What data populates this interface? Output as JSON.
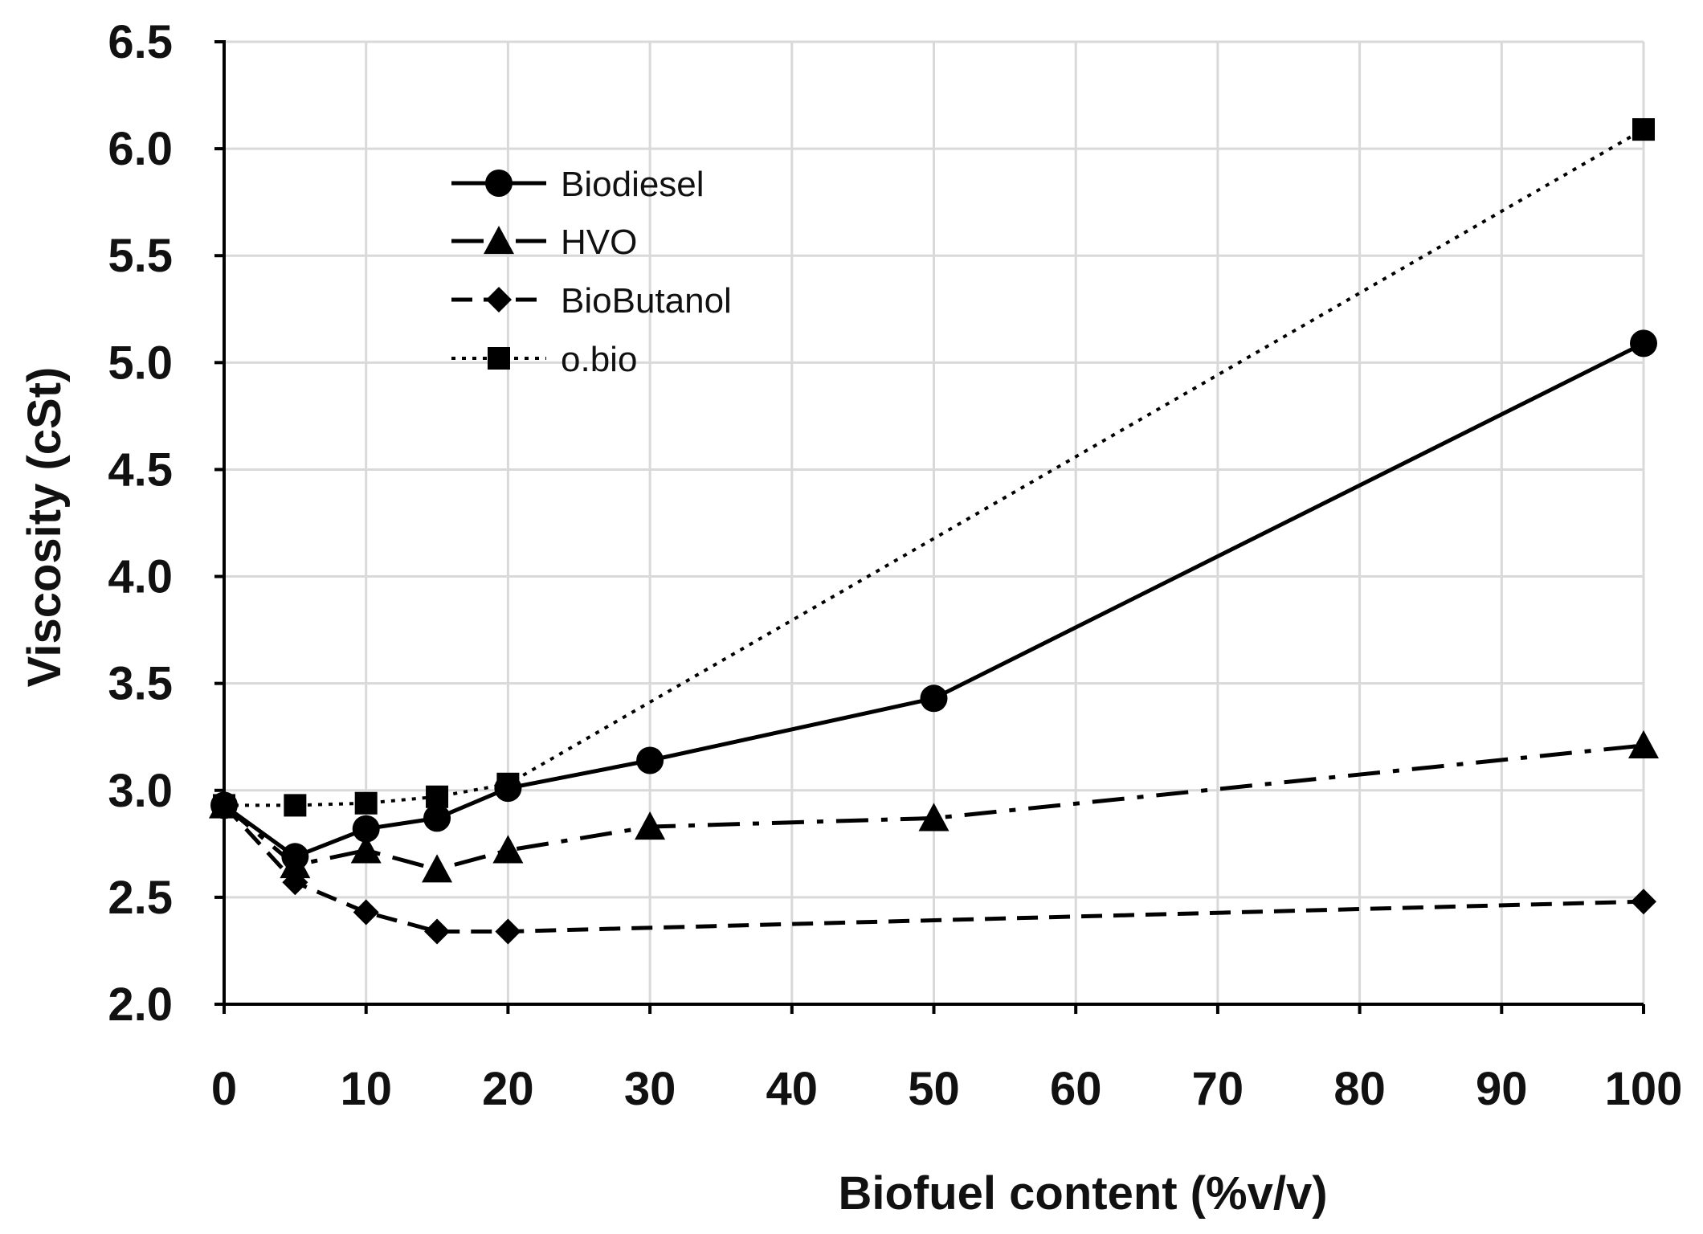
{
  "chart_data": {
    "type": "line",
    "title": "",
    "xlabel": "Biofuel content (%v/v)",
    "ylabel": "Viscosity  (cSt)",
    "xlim": [
      0,
      100
    ],
    "ylim": [
      2.0,
      6.5
    ],
    "xticks": [
      0,
      10,
      20,
      30,
      40,
      50,
      60,
      70,
      80,
      90,
      100
    ],
    "yticks": [
      2.0,
      2.5,
      3.0,
      3.5,
      4.0,
      4.5,
      5.0,
      5.5,
      6.0,
      6.5
    ],
    "xtick_labels": [
      "0",
      "10",
      "20",
      "30",
      "40",
      "50",
      "60",
      "70",
      "80",
      "90",
      "100"
    ],
    "ytick_labels": [
      "2.0",
      "2.5",
      "3.0",
      "3.5",
      "4.0",
      "4.5",
      "5.0",
      "5.5",
      "6.0",
      "6.5"
    ],
    "grid": true,
    "legend_position": "top-left",
    "colors": {
      "line": "#000000",
      "grid": "#d9d9d9",
      "axis": "#000000"
    },
    "series": [
      {
        "name": "Biodiesel",
        "marker": "circle",
        "line_style": "solid",
        "x": [
          0,
          5,
          10,
          15,
          20,
          30,
          50,
          100
        ],
        "values": [
          2.93,
          2.69,
          2.82,
          2.87,
          3.01,
          3.14,
          3.43,
          5.09
        ]
      },
      {
        "name": "HVO",
        "marker": "triangle",
        "line_style": "dash-dot",
        "x": [
          0,
          5,
          10,
          15,
          20,
          30,
          50,
          100
        ],
        "values": [
          2.93,
          2.65,
          2.72,
          2.63,
          2.72,
          2.83,
          2.87,
          3.21
        ]
      },
      {
        "name": "BioButanol",
        "marker": "diamond",
        "line_style": "dashed",
        "x": [
          0,
          5,
          10,
          15,
          20,
          100
        ],
        "values": [
          2.93,
          2.57,
          2.43,
          2.34,
          2.34,
          2.48
        ]
      },
      {
        "name": "o.bio",
        "marker": "square",
        "line_style": "dotted",
        "x": [
          0,
          5,
          10,
          15,
          20,
          100
        ],
        "values": [
          2.93,
          2.93,
          2.94,
          2.97,
          3.03,
          6.09
        ]
      }
    ]
  }
}
